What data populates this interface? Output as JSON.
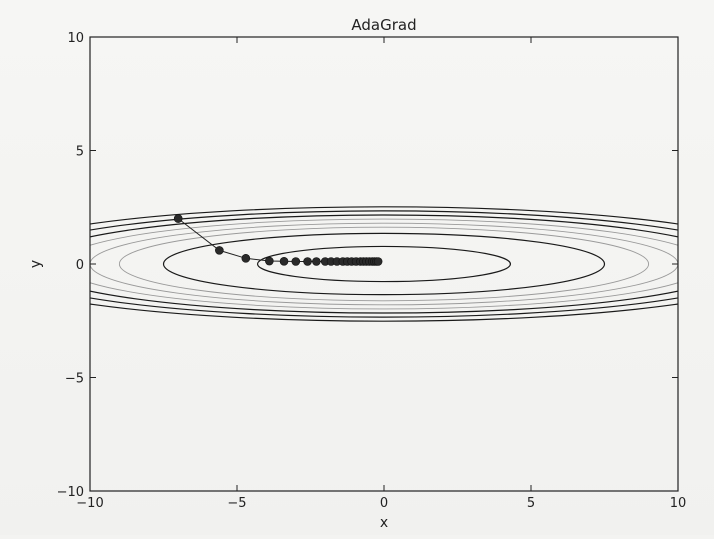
{
  "chart_data": {
    "type": "scatter",
    "title": "AdaGrad",
    "xlabel": "x",
    "ylabel": "y",
    "xlim": [
      -10,
      10
    ],
    "ylim": [
      -10,
      10
    ],
    "xticks": [
      -10,
      -5,
      0,
      5,
      10
    ],
    "yticks": [
      -10,
      -5,
      0,
      5,
      10
    ],
    "x_tick_labels": [
      "−10",
      "−5",
      "0",
      "5",
      "10"
    ],
    "y_tick_labels": [
      "−10",
      "−5",
      "0",
      "5",
      "10"
    ],
    "grid": false,
    "legend": "none",
    "colors": {
      "axis": "#222222",
      "path": "#222222",
      "contour_dark": "#1a1a1a",
      "contour_light": "#9a9a9a"
    },
    "contour_levels_x_semi_axis": [
      {
        "a": 4.3,
        "tone": "dark"
      },
      {
        "a": 7.5,
        "tone": "dark"
      },
      {
        "a": 9.0,
        "tone": "light"
      },
      {
        "a": 10.0,
        "tone": "light"
      },
      {
        "a": 11.0,
        "tone": "light"
      },
      {
        "a": 12.0,
        "tone": "dark"
      },
      {
        "a": 13.0,
        "tone": "dark"
      },
      {
        "a": 14.0,
        "tone": "dark"
      }
    ],
    "contour_aspect_y_over_x": 0.18,
    "series": [
      {
        "x": [
          -7.0,
          -5.6,
          -4.7,
          -3.9,
          -3.4,
          -3.0,
          -2.6,
          -2.3,
          -2.0,
          -1.8,
          -1.6,
          -1.4,
          -1.25,
          -1.1,
          -0.95,
          -0.8,
          -0.7,
          -0.6,
          -0.5,
          -0.4,
          -0.33,
          -0.26,
          -0.2
        ],
        "y": [
          2.0,
          0.6,
          0.25,
          0.13,
          0.12,
          0.11,
          0.11,
          0.11,
          0.11,
          0.11,
          0.11,
          0.11,
          0.11,
          0.11,
          0.11,
          0.11,
          0.11,
          0.11,
          0.11,
          0.11,
          0.11,
          0.11,
          0.11
        ]
      }
    ]
  }
}
